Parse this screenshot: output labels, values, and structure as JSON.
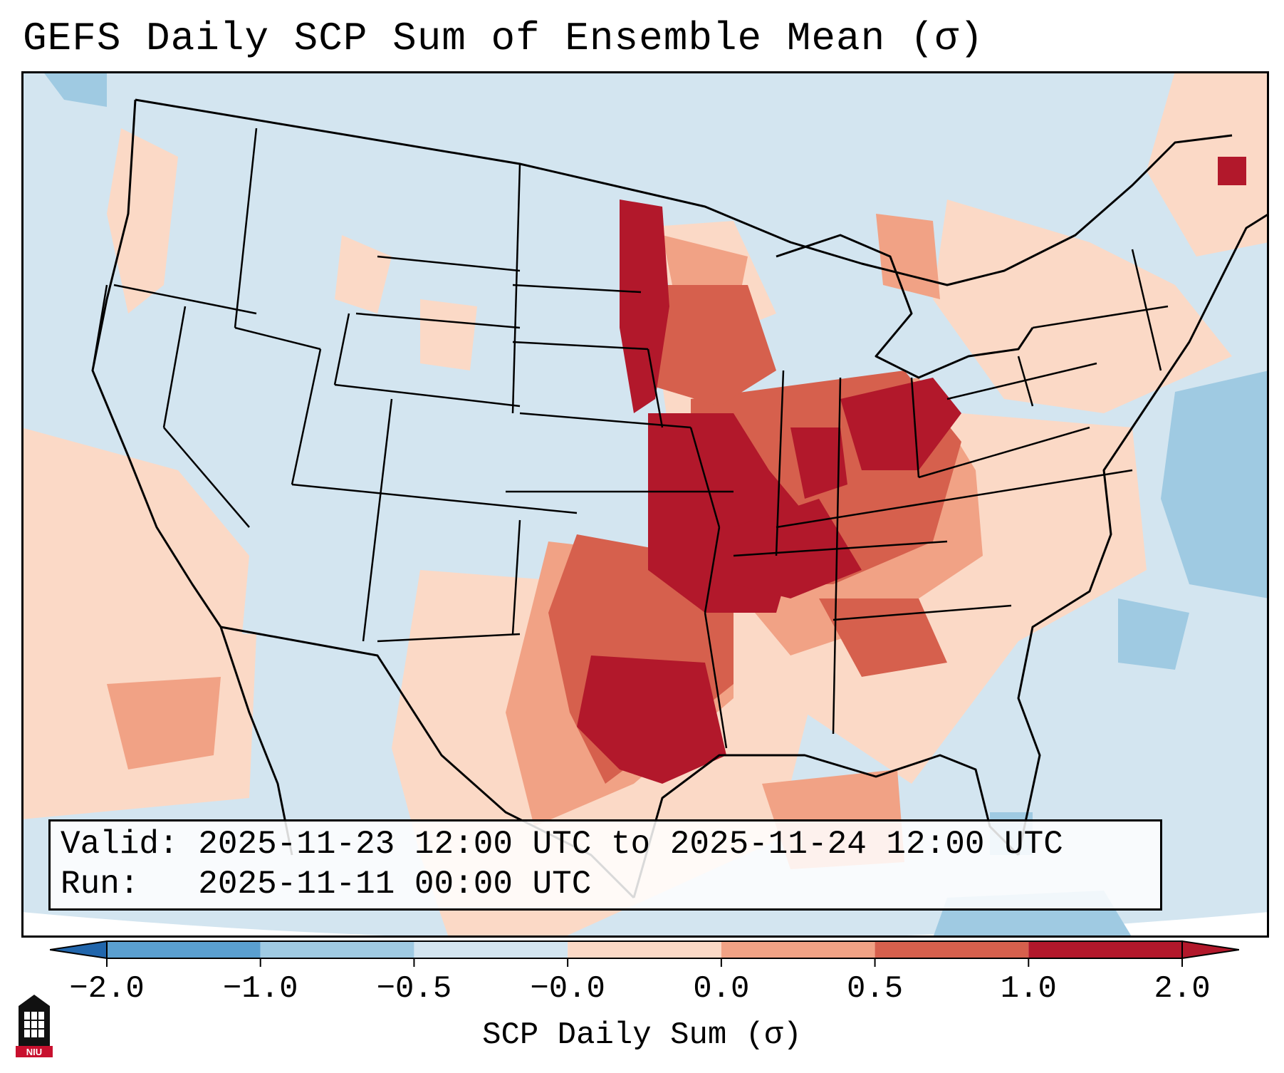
{
  "title": "GEFS Daily SCP Sum of Ensemble Mean (σ)",
  "info": {
    "valid_label": "Valid:",
    "valid_text": "2025-11-23 12:00 UTC to 2025-11-24 12:00 UTC",
    "run_label": "Run:",
    "run_text": "2025-11-11 00:00 UTC"
  },
  "colorbar": {
    "label": "SCP Daily Sum (σ)",
    "ticks": [
      "−2.0",
      "−1.0",
      "−0.5",
      "−0.0",
      "0.0",
      "0.5",
      "1.0",
      "2.0"
    ],
    "colors": [
      "#2c6fb3",
      "#5a9fd0",
      "#9fcae2",
      "#d3e5f0",
      "#fbd9c6",
      "#f1a285",
      "#d6604d",
      "#b2182b"
    ]
  },
  "legend_colors": {
    "ocean_land_background": "#d3e5f0",
    "weak_positive": "#fbd9c6",
    "moderate_positive": "#f1a285",
    "strong_positive": "#d6604d",
    "very_strong_positive": "#b2182b",
    "weak_negative": "#9fcae2"
  },
  "logo": {
    "text": "NIU"
  }
}
